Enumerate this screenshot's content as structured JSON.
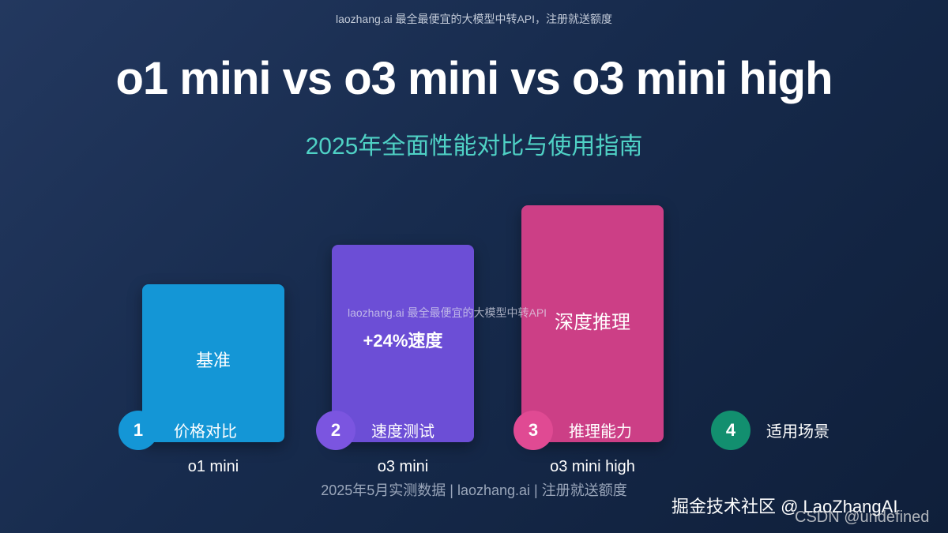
{
  "header": {
    "watermark": "laozhang.ai 最全最便宜的大模型中转API，注册就送额度",
    "title": "o1 mini vs o3 mini vs o3 mini high",
    "subtitle": "2025年全面性能对比与使用指南"
  },
  "bars": [
    {
      "label": "基准",
      "model": "o1 mini",
      "color": "#1496d6",
      "relative_height": 0.67
    },
    {
      "label": "+24%速度",
      "model": "o3 mini",
      "color": "#6c4ed6",
      "relative_height": 0.83
    },
    {
      "label": "深度推理",
      "model": "o3 mini high",
      "color": "#cc3f86",
      "relative_height": 1.0
    }
  ],
  "overlay_watermark": "laozhang.ai 最全最便宜的大模型中转API",
  "steps": [
    {
      "number": "1",
      "label": "价格对比",
      "color": "#1496d6"
    },
    {
      "number": "2",
      "label": "速度测试",
      "color": "#7b55e0"
    },
    {
      "number": "3",
      "label": "推理能力",
      "color": "#e04a93"
    },
    {
      "number": "4",
      "label": "适用场景",
      "color": "#128f6f"
    }
  ],
  "footer": {
    "note": "2025年5月实测数据 | laozhang.ai | 注册就送额度",
    "site_watermark": "掘金技术社区 @ LaoZhangAI",
    "csdn_watermark": "CSDN @undefined"
  }
}
